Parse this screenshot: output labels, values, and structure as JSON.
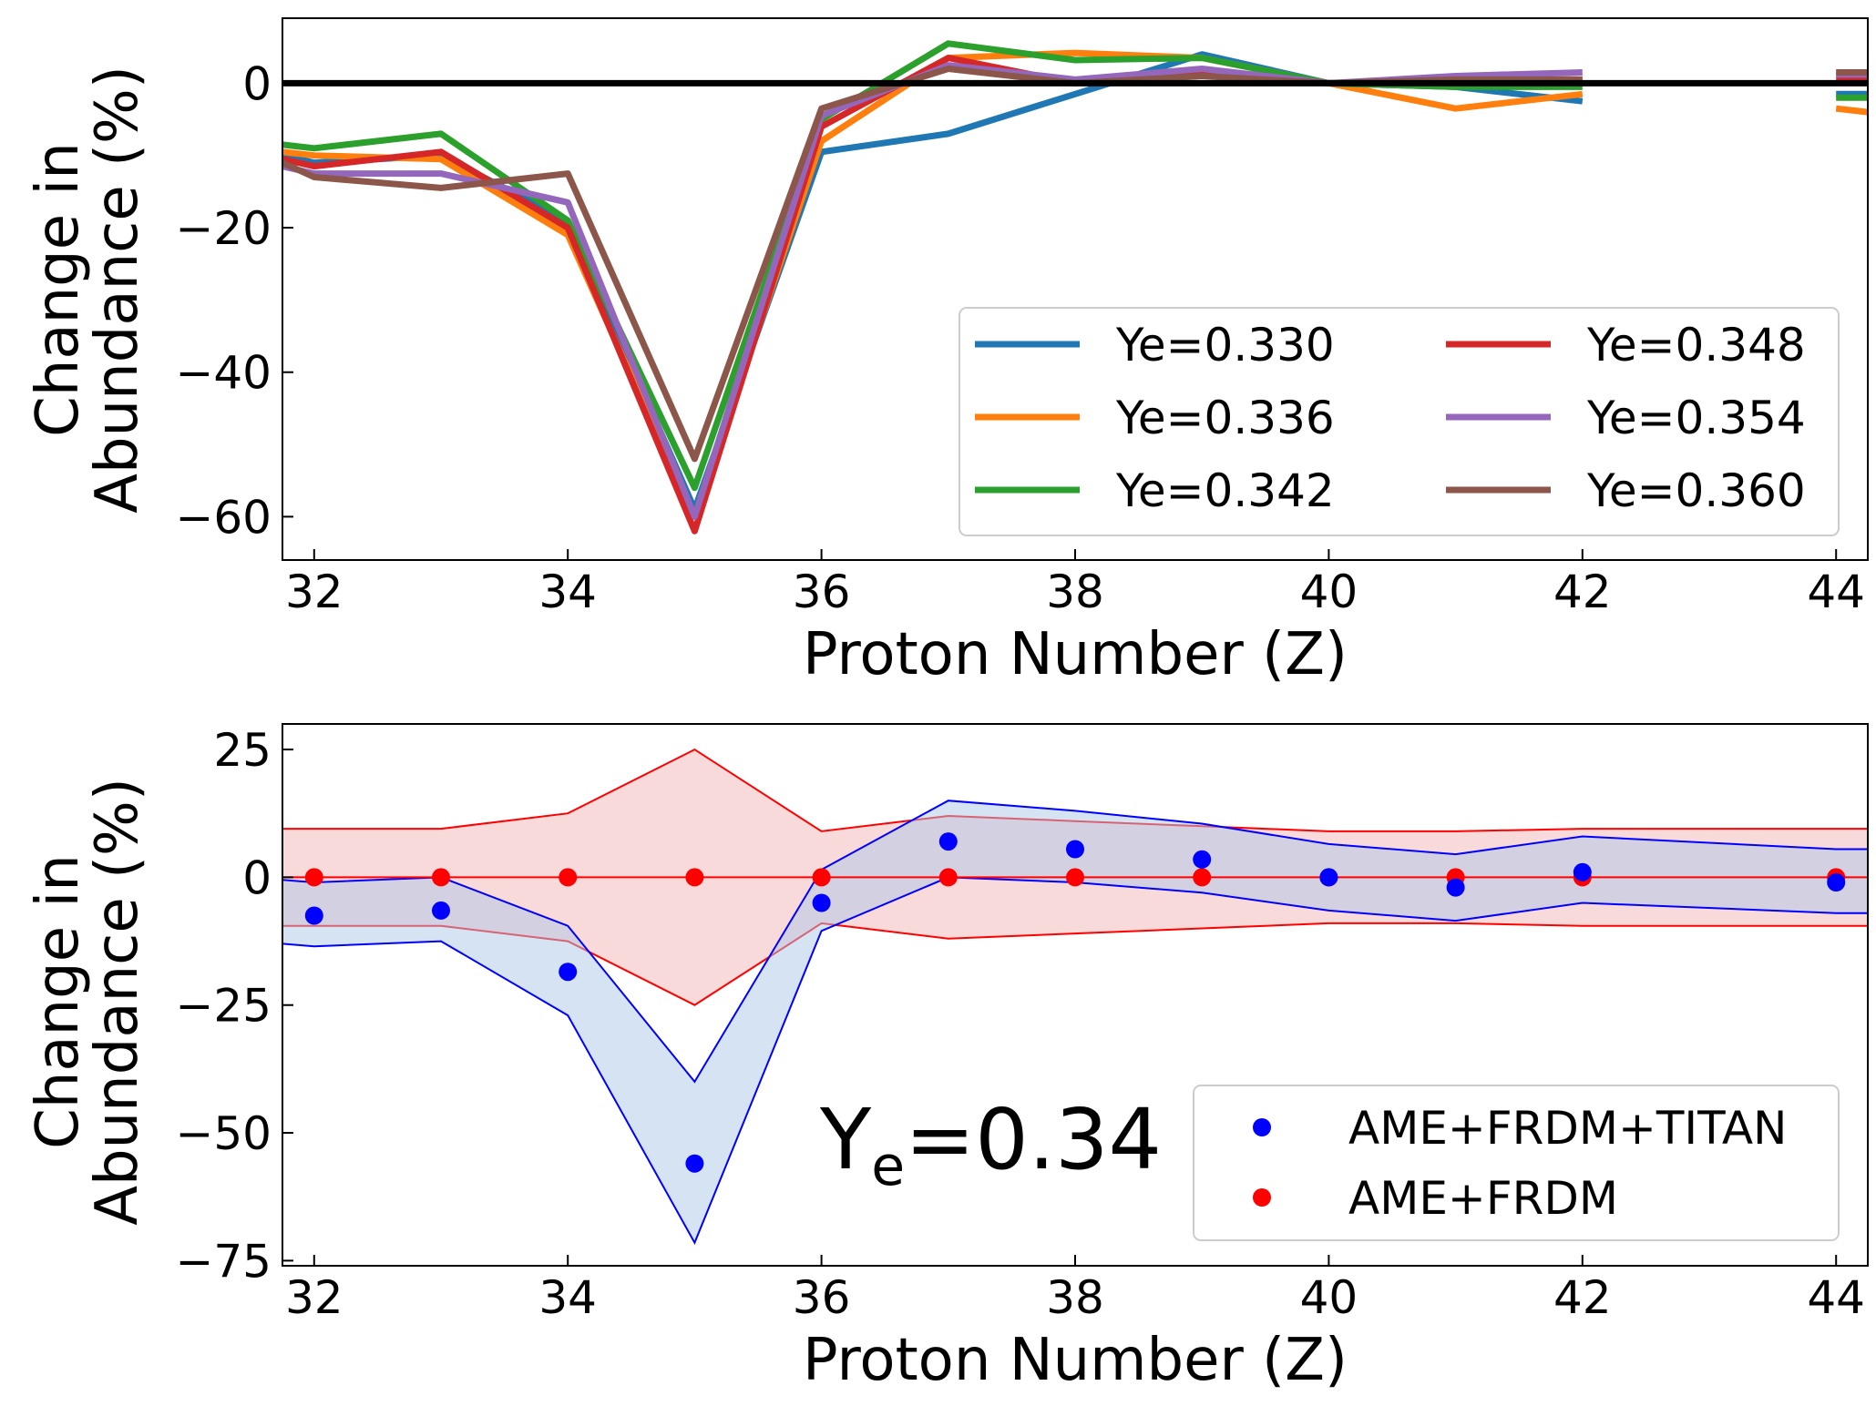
{
  "chart_data": [
    {
      "type": "line",
      "title": "",
      "xlabel": "Proton Number (Z)",
      "ylabel_line1": "Change in",
      "ylabel_line2": "Abundance (%)",
      "xlim": [
        31.75,
        44.25
      ],
      "ylim": [
        -66,
        9
      ],
      "xticks": [
        32,
        34,
        36,
        38,
        40,
        42,
        44
      ],
      "yticks": [
        0,
        -20,
        -40,
        -60
      ],
      "xtick_labels": [
        "32",
        "34",
        "36",
        "38",
        "40",
        "42",
        "44"
      ],
      "ytick_labels": [
        "0",
        "−20",
        "−40",
        "−60"
      ],
      "reference_line_y": 0,
      "legend_position": "lower-right",
      "series": [
        {
          "name": "Ye=0.330",
          "color": "#1f77b4",
          "x": [
            31.75,
            32,
            33,
            34,
            35,
            36,
            37,
            38,
            39,
            40,
            41,
            42,
            null,
            44,
            44.25
          ],
          "values": [
            -10,
            -11,
            -10,
            -19,
            -59,
            -9.5,
            -7,
            -1.5,
            4,
            0,
            -0.5,
            -2.5,
            null,
            -1.5,
            -1.5
          ]
        },
        {
          "name": "Ye=0.336",
          "color": "#ff7f0e",
          "x": [
            31.75,
            32,
            33,
            34,
            35,
            36,
            37,
            38,
            39,
            40,
            41,
            42,
            null,
            44,
            44.25
          ],
          "values": [
            -9.5,
            -10,
            -10.5,
            -21,
            -60,
            -8,
            3.5,
            4.2,
            3.5,
            0,
            -3.5,
            -1.5,
            null,
            -3.5,
            -4
          ]
        },
        {
          "name": "Ye=0.342",
          "color": "#2ca02c",
          "x": [
            31.75,
            32,
            33,
            34,
            35,
            36,
            37,
            38,
            39,
            40,
            41,
            42,
            null,
            44,
            44.25
          ],
          "values": [
            -8.5,
            -9,
            -7,
            -19,
            -56,
            -5,
            5.5,
            3.2,
            3.5,
            0,
            -0.5,
            -0.5,
            null,
            -2,
            -2
          ]
        },
        {
          "name": "Ye=0.348",
          "color": "#d62728",
          "x": [
            31.75,
            32,
            33,
            34,
            35,
            36,
            37,
            38,
            39,
            40,
            41,
            42,
            null,
            44,
            44.25
          ],
          "values": [
            -10.5,
            -11.5,
            -9.5,
            -20,
            -62,
            -6,
            3.5,
            0,
            1.5,
            0,
            0.5,
            0.5,
            null,
            0.5,
            0.5
          ]
        },
        {
          "name": "Ye=0.354",
          "color": "#9467bd",
          "x": [
            31.75,
            32,
            33,
            34,
            35,
            36,
            37,
            38,
            39,
            40,
            41,
            42,
            null,
            44,
            44.25
          ],
          "values": [
            -11.5,
            -12.5,
            -12.5,
            -16.5,
            -60,
            -4.5,
            2.5,
            0.5,
            2,
            0,
            1,
            1.5,
            null,
            1.2,
            1.2
          ]
        },
        {
          "name": "Ye=0.360",
          "color": "#8c564b",
          "x": [
            31.75,
            32,
            33,
            34,
            35,
            36,
            37,
            38,
            39,
            40,
            41,
            42,
            null,
            44,
            44.25
          ],
          "values": [
            -11,
            -13,
            -14.5,
            -12.5,
            -52,
            -3.5,
            2,
            0,
            1,
            0,
            0.5,
            0.5,
            null,
            1.5,
            1.5
          ]
        }
      ]
    },
    {
      "type": "scatter",
      "title": "",
      "xlabel": "Proton Number (Z)",
      "ylabel_line1": "Change in",
      "ylabel_line2": "Abundance (%)",
      "xlim": [
        31.75,
        44.25
      ],
      "ylim": [
        -76,
        30
      ],
      "xticks": [
        32,
        34,
        36,
        38,
        40,
        42,
        44
      ],
      "yticks": [
        25,
        0,
        -25,
        -50,
        -75
      ],
      "xtick_labels": [
        "32",
        "34",
        "36",
        "38",
        "40",
        "42",
        "44"
      ],
      "ytick_labels": [
        "25",
        "0",
        "−25",
        "−50",
        "−75"
      ],
      "annotation": {
        "main": "Y",
        "sub": "e",
        "rest": "=0.34"
      },
      "legend_position": "lower-right",
      "series": [
        {
          "name": "AME+FRDM+TITAN",
          "color": "#0000ff",
          "fill_color": "#aec7e8",
          "x": [
            32,
            33,
            34,
            35,
            36,
            37,
            38,
            39,
            40,
            41,
            42,
            44
          ],
          "values": [
            -7.5,
            -6.5,
            -18.5,
            -56,
            -5,
            7,
            5.5,
            3.5,
            0,
            -2,
            1,
            -1
          ],
          "band_x": [
            31.75,
            32,
            33,
            34,
            35,
            36,
            37,
            38,
            39,
            40,
            41,
            42,
            44,
            44.25
          ],
          "band_upper": [
            -0.5,
            -1,
            0,
            -9.5,
            -40,
            1.5,
            15,
            13,
            10.5,
            6.5,
            4.5,
            8,
            5.5,
            5.5
          ],
          "band_lower": [
            -13,
            -13.5,
            -12.5,
            -27,
            -71.5,
            -10.5,
            0,
            -1,
            -3,
            -6.5,
            -8.5,
            -5,
            -7,
            -7
          ]
        },
        {
          "name": "AME+FRDM",
          "color": "#ff0000",
          "fill_color": "#f4b6b6",
          "x": [
            32,
            33,
            34,
            35,
            36,
            37,
            38,
            39,
            40,
            41,
            42,
            44
          ],
          "values": [
            0,
            0,
            0,
            0,
            0,
            0,
            0,
            0,
            0,
            0,
            0,
            0
          ],
          "band_x": [
            31.75,
            32,
            33,
            34,
            35,
            36,
            37,
            38,
            39,
            40,
            41,
            42,
            44,
            44.25
          ],
          "band_upper": [
            9.5,
            9.5,
            9.5,
            12.5,
            25,
            9,
            12,
            11,
            10,
            9,
            9,
            9.5,
            9.5,
            9.5
          ],
          "band_lower": [
            -9.5,
            -9.5,
            -9.5,
            -12.5,
            -25,
            -9,
            -12,
            -11,
            -10,
            -9,
            -9,
            -9.5,
            -9.5,
            -9.5
          ]
        }
      ]
    }
  ]
}
